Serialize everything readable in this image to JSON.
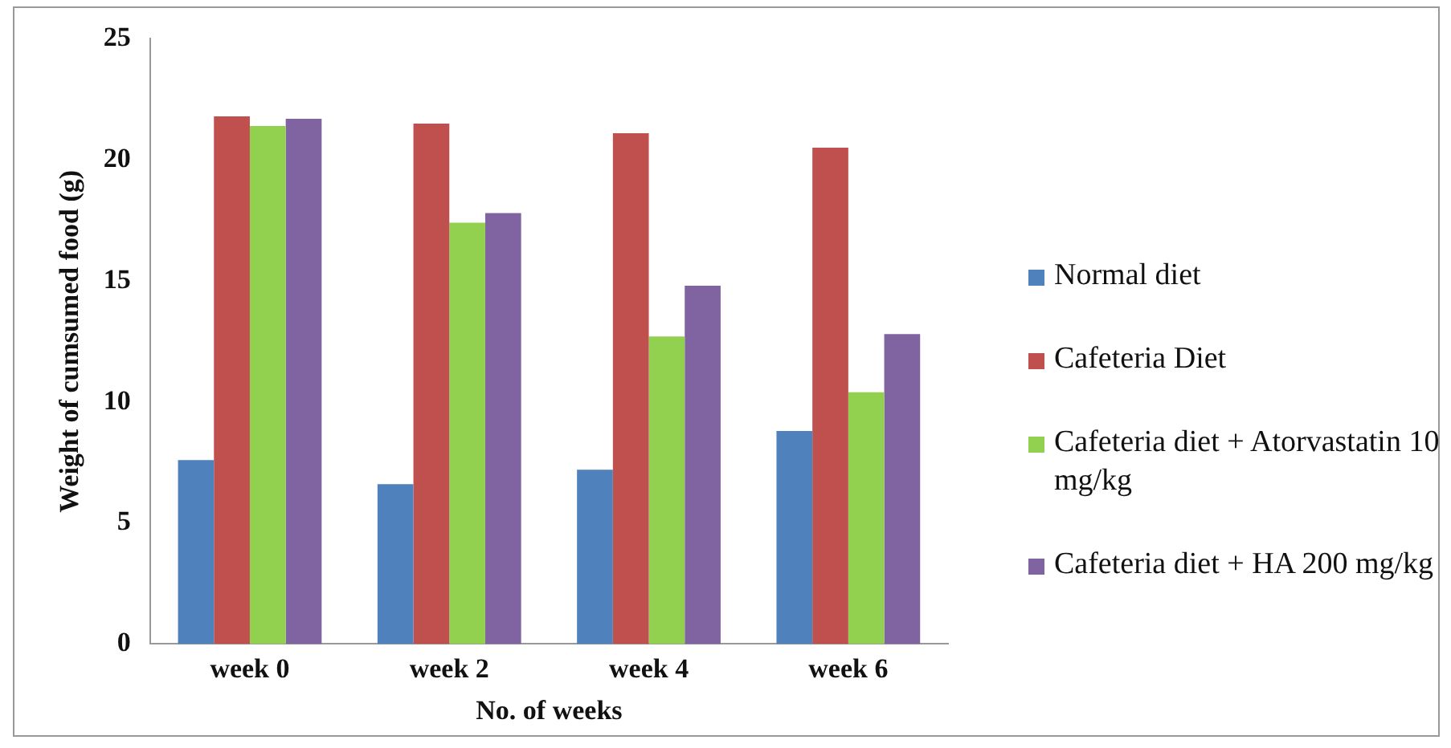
{
  "chart_data": {
    "type": "bar",
    "xlabel": "No. of weeks",
    "ylabel": "Weight of cumsumed food (g)",
    "categories": [
      "week 0",
      "week 2",
      "week 4",
      "week 6"
    ],
    "series": [
      {
        "name": "Normal diet",
        "color": "#4f81bd",
        "values": [
          7.6,
          6.6,
          7.2,
          8.8
        ]
      },
      {
        "name": "Cafeteria Diet",
        "color": "#c0504d",
        "values": [
          21.8,
          21.5,
          21.1,
          20.5
        ]
      },
      {
        "name": "Cafeteria diet + Atorvastatin 10 mg/kg",
        "color": "#92d050",
        "values": [
          21.4,
          17.4,
          12.7,
          10.4
        ]
      },
      {
        "name": "Cafeteria diet + HA 200 mg/kg",
        "color": "#8064a2",
        "values": [
          21.7,
          17.8,
          14.8,
          12.8
        ]
      }
    ],
    "ylim": [
      0,
      25
    ],
    "yticks": [
      0,
      5,
      10,
      15,
      20,
      25
    ],
    "grid": false,
    "legend": "right"
  }
}
